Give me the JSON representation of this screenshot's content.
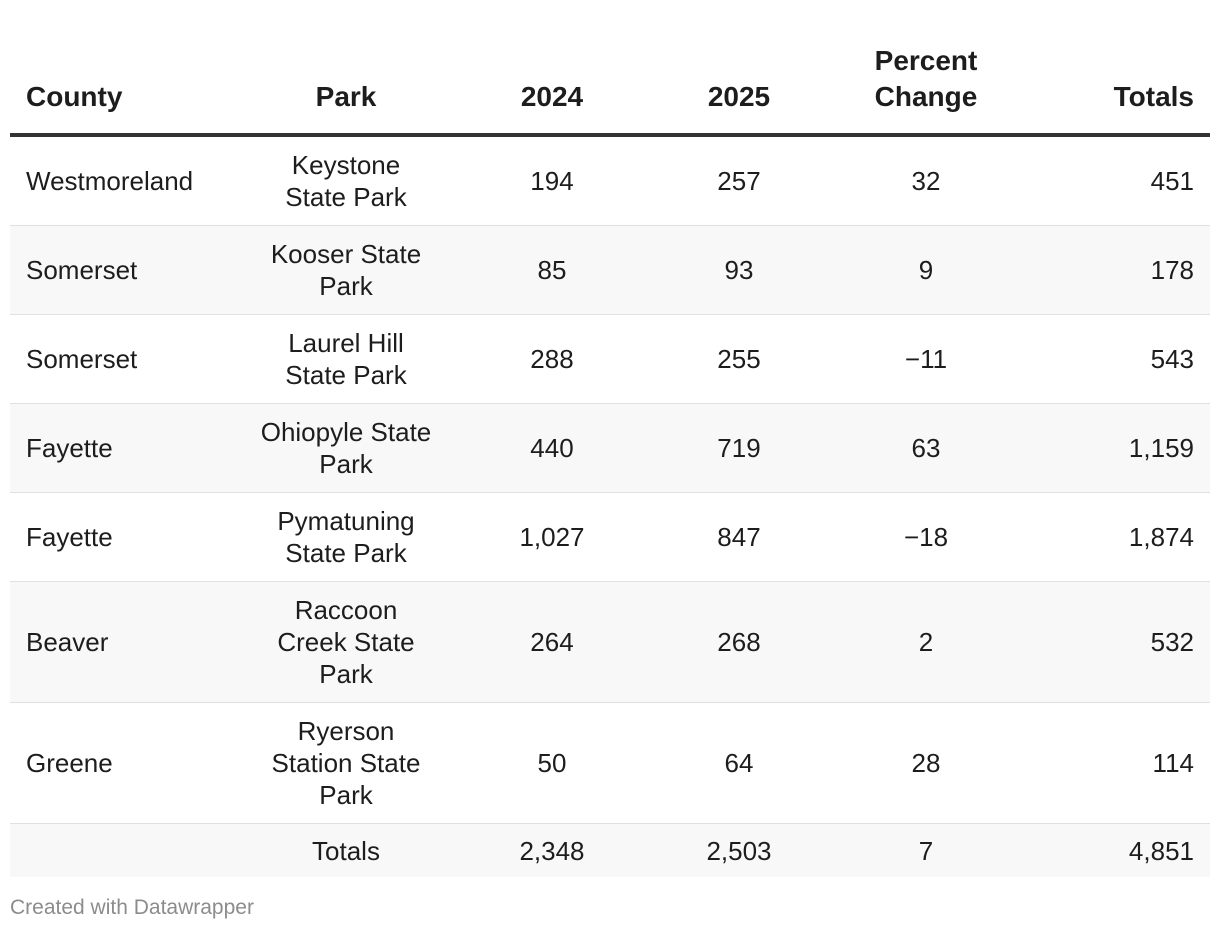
{
  "chart_data": {
    "type": "table",
    "columns": [
      "County",
      "Park",
      "2024",
      "2025",
      "Percent Change",
      "Totals"
    ],
    "rows": [
      {
        "county": "Westmoreland",
        "park": "Keystone State Park",
        "y2024": "194",
        "y2025": "257",
        "pct": "32",
        "total": "451"
      },
      {
        "county": "Somerset",
        "park": "Kooser State Park",
        "y2024": "85",
        "y2025": "93",
        "pct": "9",
        "total": "178"
      },
      {
        "county": "Somerset",
        "park": "Laurel Hill State Park",
        "y2024": "288",
        "y2025": "255",
        "pct": "−11",
        "total": "543"
      },
      {
        "county": "Fayette",
        "park": "Ohiopyle State Park",
        "y2024": "440",
        "y2025": "719",
        "pct": "63",
        "total": "1,159"
      },
      {
        "county": "Fayette",
        "park": "Pymatuning State Park",
        "y2024": "1,027",
        "y2025": "847",
        "pct": "−18",
        "total": "1,874"
      },
      {
        "county": "Beaver",
        "park": "Raccoon Creek State Park",
        "y2024": "264",
        "y2025": "268",
        "pct": "2",
        "total": "532"
      },
      {
        "county": "Greene",
        "park": "Ryerson Station State Park",
        "y2024": "50",
        "y2025": "64",
        "pct": "28",
        "total": "114"
      }
    ],
    "totals": {
      "label": "Totals",
      "y2024": "2,348",
      "y2025": "2,503",
      "pct": "7",
      "total": "4,851"
    }
  },
  "footer": {
    "credit": "Created with Datawrapper"
  },
  "colors": {
    "header_rule": "#333333",
    "row_stripe": "#f8f8f8",
    "row_divider": "#e0e0e0",
    "credit_text": "#8c8c8c"
  }
}
